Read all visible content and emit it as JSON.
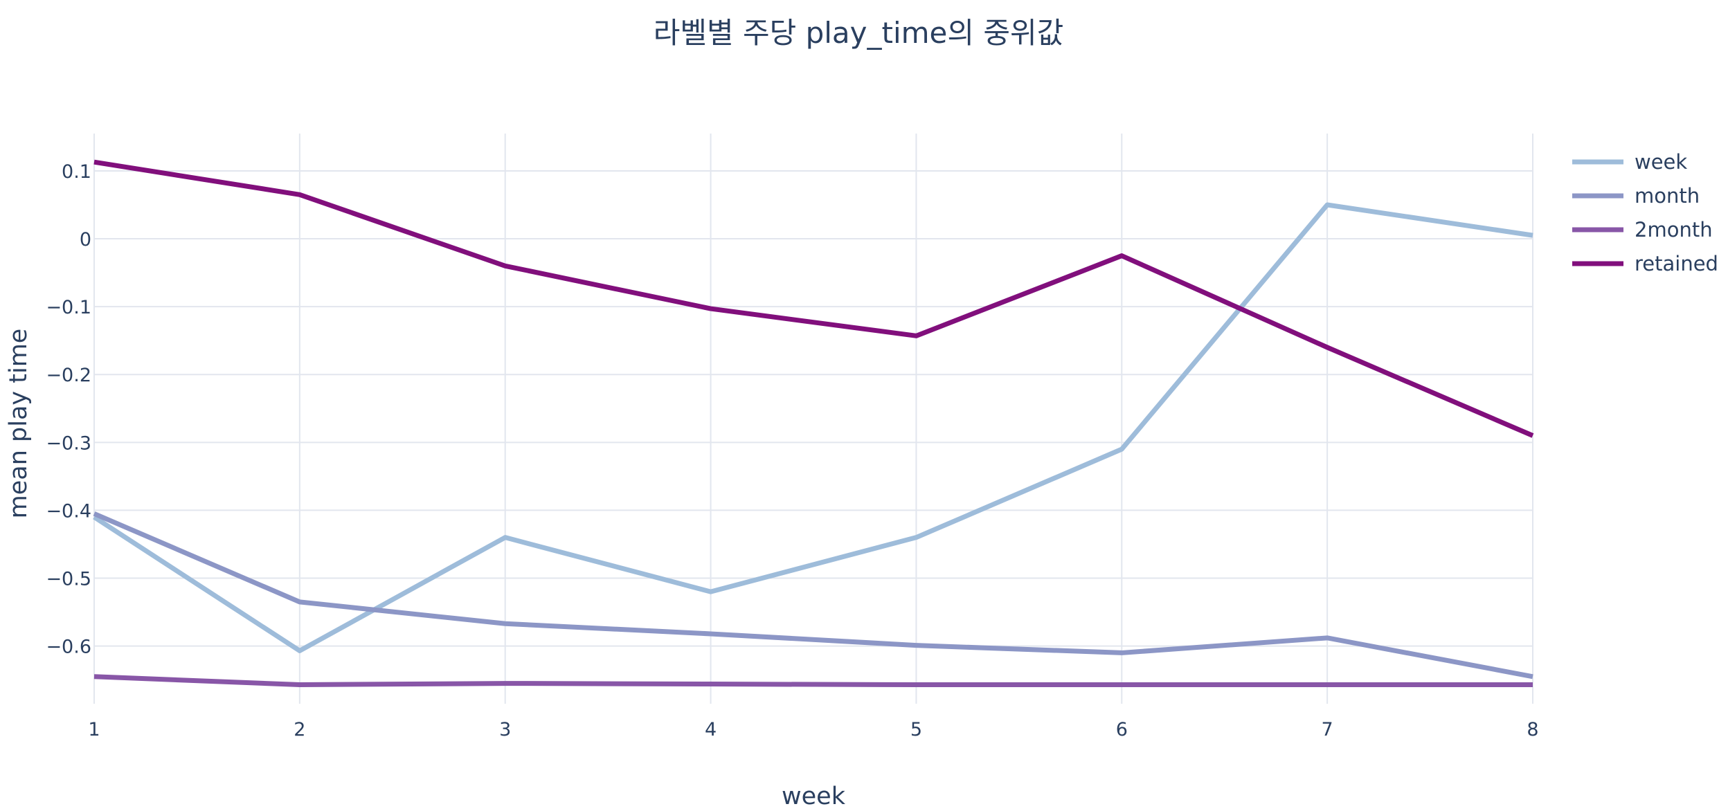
{
  "chart_data": {
    "type": "line",
    "title": "라벨별 주당 play_time의 중위값",
    "xlabel": "week",
    "ylabel": "mean play time",
    "x": [
      1,
      2,
      3,
      4,
      5,
      6,
      7,
      8
    ],
    "xlim": [
      1,
      8
    ],
    "ylim": [
      -0.685,
      0.155
    ],
    "x_ticks": [
      "1",
      "2",
      "3",
      "4",
      "5",
      "6",
      "7",
      "8"
    ],
    "y_ticks": [
      {
        "value": 0.1,
        "label": "0.1"
      },
      {
        "value": 0.0,
        "label": "0"
      },
      {
        "value": -0.1,
        "label": "−0.1"
      },
      {
        "value": -0.2,
        "label": "−0.2"
      },
      {
        "value": -0.3,
        "label": "−0.3"
      },
      {
        "value": -0.4,
        "label": "−0.4"
      },
      {
        "value": -0.5,
        "label": "−0.5"
      },
      {
        "value": -0.6,
        "label": "−0.6"
      }
    ],
    "grid": true,
    "legend_position": "top-right",
    "series": [
      {
        "name": "week",
        "color": "#9ebcda",
        "values": [
          -0.41,
          -0.607,
          -0.44,
          -0.52,
          -0.44,
          -0.31,
          0.05,
          0.005
        ]
      },
      {
        "name": "month",
        "color": "#8c96c6",
        "values": [
          -0.405,
          -0.535,
          -0.567,
          -0.582,
          -0.599,
          -0.61,
          -0.588,
          -0.645
        ]
      },
      {
        "name": "2month",
        "color": "#8856a7",
        "values": [
          -0.645,
          -0.657,
          -0.655,
          -0.656,
          -0.657,
          -0.657,
          -0.657,
          -0.657
        ]
      },
      {
        "name": "retained",
        "color": "#810f7c",
        "values": [
          0.113,
          0.065,
          -0.04,
          -0.103,
          -0.143,
          -0.025,
          -0.16,
          -0.29
        ]
      }
    ]
  }
}
